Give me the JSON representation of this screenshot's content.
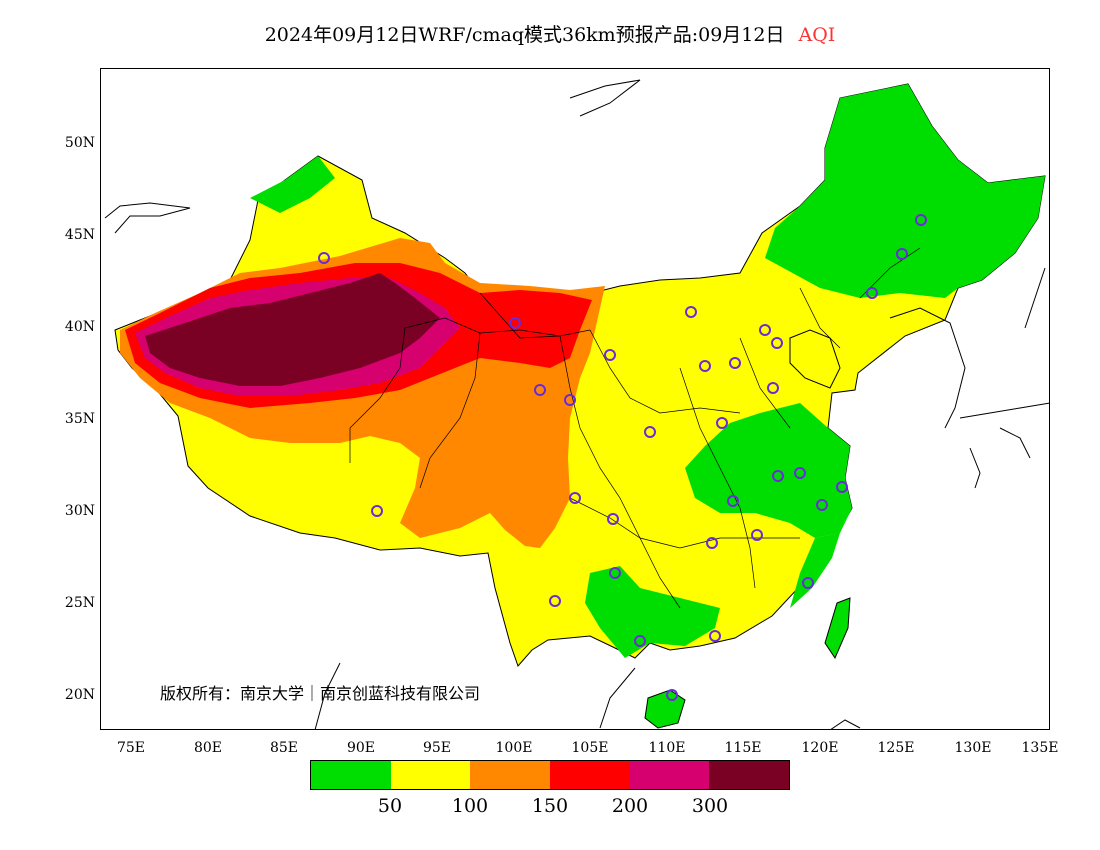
{
  "title": {
    "main": "2024年09月12日WRF/cmaq模式36km预报产品:09月12日",
    "product": "AQI",
    "product_color": "#ff3333"
  },
  "map": {
    "lon_range": [
      73,
      135
    ],
    "lat_range": [
      18,
      54
    ],
    "lat_ticks": [
      "50N",
      "45N",
      "40N",
      "35N",
      "30N",
      "25N",
      "20N"
    ],
    "lon_ticks": [
      "75E",
      "80E",
      "85E",
      "90E",
      "95E",
      "100E",
      "105E",
      "110E",
      "115E",
      "120E",
      "125E",
      "130E",
      "135E"
    ],
    "station_marker": "circle-marker",
    "station_color": "#6a2bd9"
  },
  "copyright": "版权所有：南京大学｜南京创蓝科技有限公司",
  "legend": {
    "colors": [
      "#00dd00",
      "#ffff00",
      "#ff8800",
      "#ff0000",
      "#d6006e",
      "#7a0024"
    ],
    "labels": [
      "50",
      "100",
      "150",
      "200",
      "300"
    ]
  }
}
